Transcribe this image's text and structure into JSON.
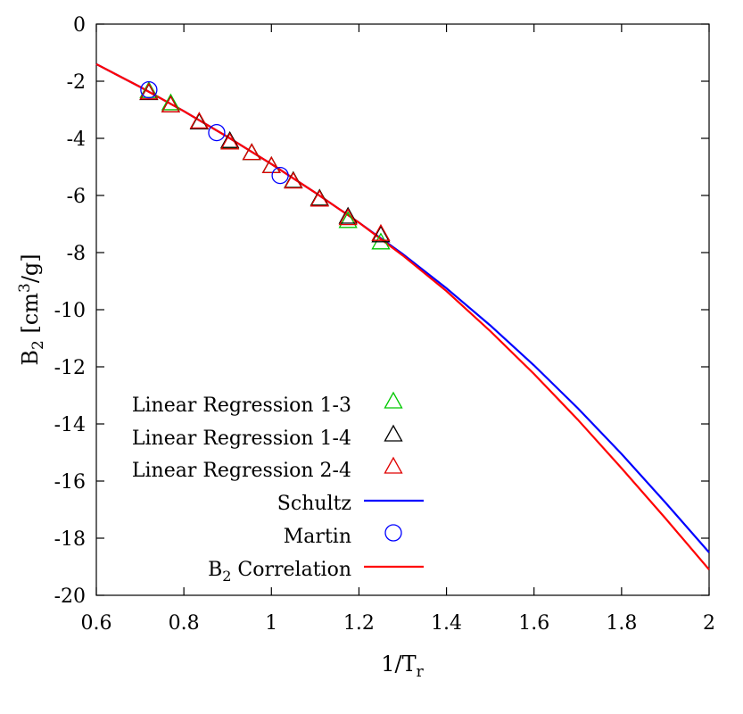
{
  "chart_data": {
    "type": "line",
    "title": "",
    "xlabel": "1/T",
    "xlabel_sub": "r",
    "ylabel_pre": "B",
    "ylabel_sub": "2",
    "ylabel_mid": " [cm",
    "ylabel_sup": "3",
    "ylabel_post": "/g]",
    "xlim": [
      0.6,
      2.0
    ],
    "ylim": [
      -20,
      0
    ],
    "x_ticks": [
      "0.6",
      "0.8",
      "1",
      "1.2",
      "1.4",
      "1.6",
      "1.8",
      "2"
    ],
    "y_ticks": [
      "0",
      "-2",
      "-4",
      "-6",
      "-8",
      "-10",
      "-12",
      "-14",
      "-16",
      "-18",
      "-20"
    ],
    "grid": false,
    "legend_position": "left",
    "series": [
      {
        "name": "Linear Regression 1-3",
        "kind": "marker",
        "marker": "triangle",
        "color": "#00c800",
        "x": [
          0.72,
          0.77,
          0.835,
          0.905,
          0.955,
          1.0,
          1.05,
          1.11,
          1.175,
          1.25
        ],
        "y": [
          -2.35,
          -2.78,
          -3.45,
          -4.12,
          -4.52,
          -4.98,
          -5.5,
          -6.12,
          -6.9,
          -7.65
        ]
      },
      {
        "name": "Linear Regression 1-4",
        "kind": "marker",
        "marker": "triangle",
        "color": "#000000",
        "x": [
          0.72,
          0.77,
          0.835,
          0.905,
          0.955,
          1.0,
          1.05,
          1.11,
          1.175,
          1.25
        ],
        "y": [
          -2.42,
          -2.85,
          -3.45,
          -4.1,
          -4.52,
          -4.98,
          -5.5,
          -6.12,
          -6.75,
          -7.4
        ]
      },
      {
        "name": "Linear Regression 2-4",
        "kind": "marker",
        "marker": "triangle",
        "color": "#e00000",
        "x": [
          0.72,
          0.77,
          0.835,
          0.905,
          0.955,
          1.0,
          1.05,
          1.11,
          1.175,
          1.25
        ],
        "y": [
          -2.4,
          -2.85,
          -3.42,
          -4.15,
          -4.52,
          -4.98,
          -5.52,
          -6.15,
          -6.8,
          -7.35
        ]
      },
      {
        "name": "Schultz",
        "kind": "line",
        "color": "#0000ff",
        "x": [
          0.6,
          0.7,
          0.8,
          0.9,
          1.0,
          1.1,
          1.2,
          1.3,
          1.4,
          1.5,
          1.6,
          1.7,
          1.8,
          1.9,
          2.0
        ],
        "y": [
          -1.4,
          -2.2,
          -3.05,
          -3.95,
          -4.9,
          -5.9,
          -6.95,
          -8.05,
          -9.25,
          -10.55,
          -11.95,
          -13.45,
          -15.05,
          -16.75,
          -18.5
        ]
      },
      {
        "name": "Martin",
        "kind": "marker",
        "marker": "circle",
        "color": "#0000ff",
        "x": [
          0.72,
          0.875,
          1.02
        ],
        "y": [
          -2.3,
          -3.8,
          -5.3
        ]
      },
      {
        "name_pre": "B",
        "name_sub": "2",
        "name_post": " Correlation",
        "kind": "line",
        "color": "#ff0000",
        "x": [
          0.6,
          0.7,
          0.8,
          0.9,
          1.0,
          1.1,
          1.2,
          1.3,
          1.4,
          1.5,
          1.6,
          1.7,
          1.8,
          1.9,
          2.0
        ],
        "y": [
          -1.4,
          -2.2,
          -3.05,
          -3.95,
          -4.9,
          -5.9,
          -6.95,
          -8.1,
          -9.35,
          -10.75,
          -12.25,
          -13.85,
          -15.55,
          -17.3,
          -19.1
        ]
      }
    ]
  }
}
